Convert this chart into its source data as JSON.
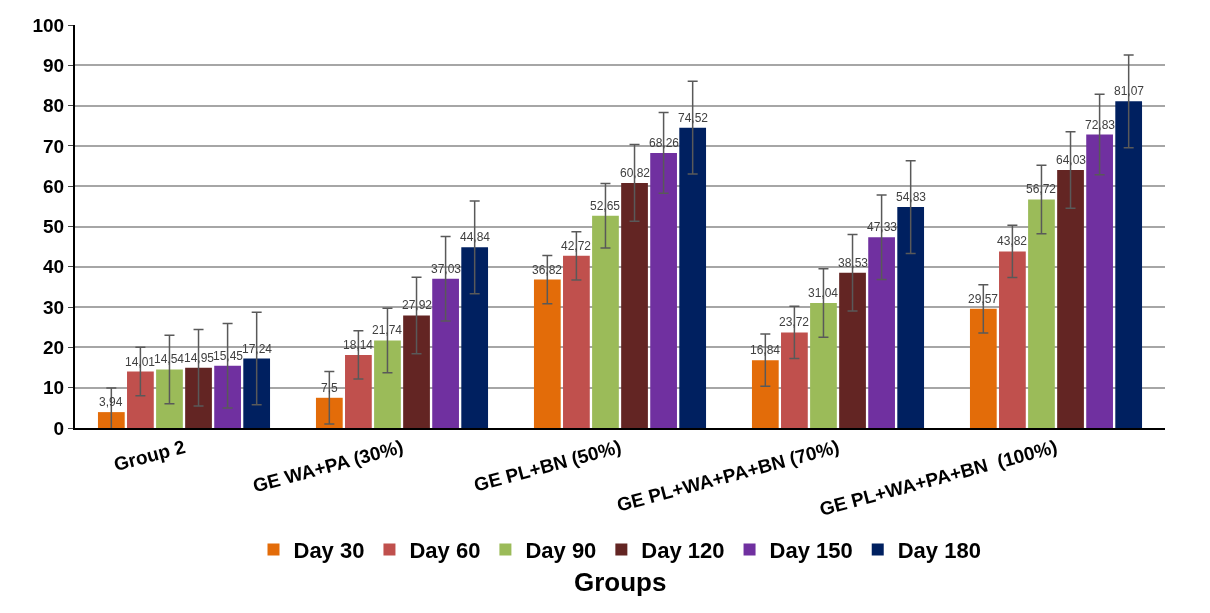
{
  "chart_data": {
    "type": "bar",
    "xlabel": "Groups",
    "categories": [
      "Group 2",
      "GE WA+PA (30%)",
      "GE PL+BN (50%)",
      "GE PL+WA+PA+BN (70%)",
      "GE PL+WA+PA+BN  (100%)"
    ],
    "series": [
      {
        "name": "Day 30",
        "color": "#e36c09",
        "values": [
          3.94,
          7.5,
          36.82,
          16.84,
          29.57
        ],
        "value_labels": [
          "3,94",
          "7,5",
          "36,82",
          "16,84",
          "29,57"
        ],
        "errors": [
          6,
          6.5,
          6,
          6.5,
          6
        ]
      },
      {
        "name": "Day 60",
        "color": "#c0504d",
        "values": [
          14.01,
          18.14,
          42.72,
          23.72,
          43.82
        ],
        "value_labels": [
          "14,01",
          "18,14",
          "42,72",
          "23,72",
          "43,82"
        ],
        "errors": [
          6,
          6,
          6,
          6.5,
          6.5
        ]
      },
      {
        "name": "Day 90",
        "color": "#9bbb59",
        "values": [
          14.54,
          21.74,
          52.65,
          31.04,
          56.72
        ],
        "value_labels": [
          "14,54",
          "21,74",
          "52,65",
          "31,04",
          "56,72"
        ],
        "errors": [
          8.5,
          8,
          8,
          8.5,
          8.5
        ]
      },
      {
        "name": "Day 120",
        "color": "#632523",
        "values": [
          14.95,
          27.92,
          60.82,
          38.53,
          64.03
        ],
        "value_labels": [
          "14,95",
          "27,92",
          "60,82",
          "38,53",
          "64,03"
        ],
        "errors": [
          9.5,
          9.5,
          9.5,
          9.5,
          9.5
        ]
      },
      {
        "name": "Day 150",
        "color": "#7030a0",
        "values": [
          15.45,
          37.03,
          68.26,
          47.33,
          72.83
        ],
        "value_labels": [
          "15,45",
          "37,03",
          "68,26",
          "47,33",
          "72,83"
        ],
        "errors": [
          10.5,
          10.5,
          10,
          10.5,
          10
        ]
      },
      {
        "name": "Day 180",
        "color": "#002060",
        "values": [
          17.24,
          44.84,
          74.52,
          54.83,
          81.07
        ],
        "value_labels": [
          "17,24",
          "44,84",
          "74,52",
          "54,83",
          "81,07"
        ],
        "errors": [
          11.5,
          11.5,
          11.5,
          11.5,
          11.5
        ]
      }
    ],
    "ylim": [
      0,
      100
    ],
    "yticks": [
      0,
      10,
      20,
      30,
      40,
      50,
      60,
      70,
      80,
      90,
      100
    ],
    "grid": "y",
    "legend": "bottom"
  }
}
